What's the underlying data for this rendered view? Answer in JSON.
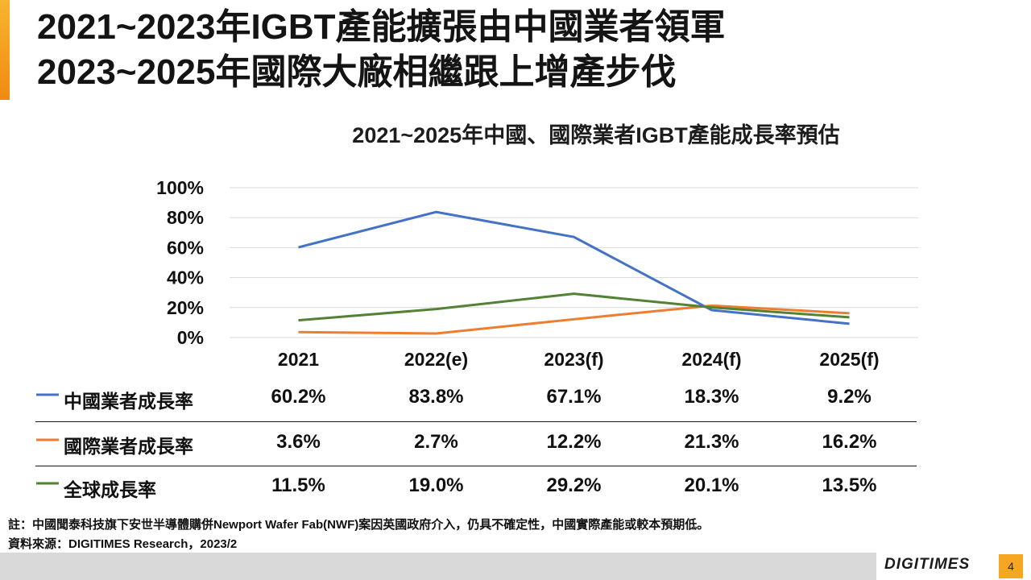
{
  "title": {
    "line1": "2021~2023年IGBT產能擴張由中國業者領軍",
    "line2": "2023~2025年國際大廠相繼跟上增產步伐"
  },
  "chart_data": {
    "type": "line",
    "title": "2021~2025年中國、國際業者IGBT產能成長率預估",
    "categories": [
      "2021",
      "2022(e)",
      "2023(f)",
      "2024(f)",
      "2025(f)"
    ],
    "yticks": [
      "0%",
      "20%",
      "40%",
      "60%",
      "80%",
      "100%"
    ],
    "ylim": [
      0,
      100
    ],
    "grid": true,
    "series": [
      {
        "name": "中國業者成長率",
        "color": "#4472c4",
        "values": [
          60.2,
          83.8,
          67.1,
          18.3,
          9.2
        ],
        "labels": [
          "60.2%",
          "83.8%",
          "67.1%",
          "18.3%",
          "9.2%"
        ]
      },
      {
        "name": "國際業者成長率",
        "color": "#ed7d31",
        "values": [
          3.6,
          2.7,
          12.2,
          21.3,
          16.2
        ],
        "labels": [
          "3.6%",
          "2.7%",
          "12.2%",
          "21.3%",
          "16.2%"
        ]
      },
      {
        "name": "全球成長率",
        "color": "#548235",
        "values": [
          11.5,
          19.0,
          29.2,
          20.1,
          13.5
        ],
        "labels": [
          "11.5%",
          "19.0%",
          "29.2%",
          "20.1%",
          "13.5%"
        ]
      }
    ]
  },
  "notes": {
    "note": "註：中國聞泰科技旗下安世半導體購併Newport Wafer Fab(NWF)案因英國政府介入，仍具不確定性，中國實際產能或較本預期低。",
    "source": "資料來源：DIGITIMES Research，2023/2"
  },
  "footer": {
    "logo": "DIGITIMES",
    "page": "4"
  }
}
